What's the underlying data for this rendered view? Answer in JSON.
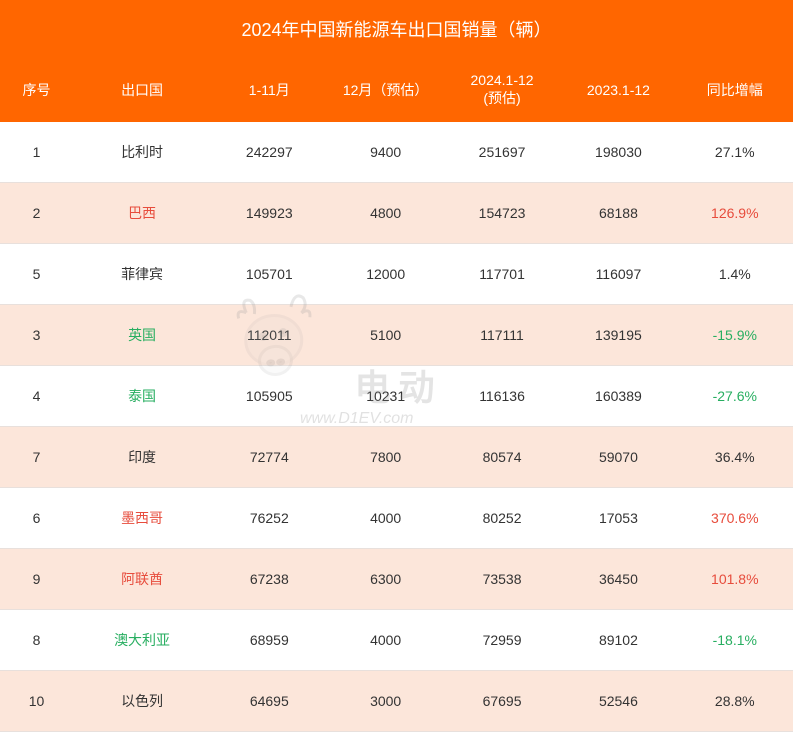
{
  "title": "2024年中国新能源车出口国销量（辆）",
  "columns": [
    {
      "key": "seq",
      "label": "序号",
      "class": "col-seq"
    },
    {
      "key": "country",
      "label": "出口国",
      "class": "col-country"
    },
    {
      "key": "jan_nov",
      "label": "1-11月",
      "class": ""
    },
    {
      "key": "dec_est",
      "label": "12月（预估）",
      "class": ""
    },
    {
      "key": "full_est",
      "label": "2024.1-12\n(预估)",
      "class": ""
    },
    {
      "key": "prev_year",
      "label": "2023.1-12",
      "class": ""
    },
    {
      "key": "yoy",
      "label": "同比增幅",
      "class": ""
    }
  ],
  "rows": [
    {
      "seq": "1",
      "country": "比利时",
      "country_color": "",
      "jan_nov": "242297",
      "dec_est": "9400",
      "full_est": "251697",
      "prev_year": "198030",
      "yoy": "27.1%",
      "yoy_color": ""
    },
    {
      "seq": "2",
      "country": "巴西",
      "country_color": "red",
      "jan_nov": "149923",
      "dec_est": "4800",
      "full_est": "154723",
      "prev_year": "68188",
      "yoy": "126.9%",
      "yoy_color": "red"
    },
    {
      "seq": "5",
      "country": "菲律宾",
      "country_color": "",
      "jan_nov": "105701",
      "dec_est": "12000",
      "full_est": "117701",
      "prev_year": "116097",
      "yoy": "1.4%",
      "yoy_color": ""
    },
    {
      "seq": "3",
      "country": "英国",
      "country_color": "green",
      "jan_nov": "112011",
      "dec_est": "5100",
      "full_est": "117111",
      "prev_year": "139195",
      "yoy": "-15.9%",
      "yoy_color": "green"
    },
    {
      "seq": "4",
      "country": "泰国",
      "country_color": "green",
      "jan_nov": "105905",
      "dec_est": "10231",
      "full_est": "116136",
      "prev_year": "160389",
      "yoy": "-27.6%",
      "yoy_color": "green"
    },
    {
      "seq": "7",
      "country": "印度",
      "country_color": "",
      "jan_nov": "72774",
      "dec_est": "7800",
      "full_est": "80574",
      "prev_year": "59070",
      "yoy": "36.4%",
      "yoy_color": ""
    },
    {
      "seq": "6",
      "country": "墨西哥",
      "country_color": "red",
      "jan_nov": "76252",
      "dec_est": "4000",
      "full_est": "80252",
      "prev_year": "17053",
      "yoy": "370.6%",
      "yoy_color": "red"
    },
    {
      "seq": "9",
      "country": "阿联酋",
      "country_color": "red",
      "jan_nov": "67238",
      "dec_est": "6300",
      "full_est": "73538",
      "prev_year": "36450",
      "yoy": "101.8%",
      "yoy_color": "red"
    },
    {
      "seq": "8",
      "country": "澳大利亚",
      "country_color": "green",
      "jan_nov": "68959",
      "dec_est": "4000",
      "full_est": "72959",
      "prev_year": "89102",
      "yoy": "-18.1%",
      "yoy_color": "green"
    },
    {
      "seq": "10",
      "country": "以色列",
      "country_color": "",
      "jan_nov": "64695",
      "dec_est": "3000",
      "full_est": "67695",
      "prev_year": "52546",
      "yoy": "28.8%",
      "yoy_color": ""
    }
  ],
  "watermark": {
    "brand_text": "电动",
    "url": "www.D1EV.com"
  },
  "styling": {
    "title_bg": "#ff6600",
    "title_color": "#ffffff",
    "header_bg": "#ff6600",
    "header_color": "#ffffff",
    "row_odd_bg": "#ffffff",
    "row_even_bg": "#fce6da",
    "text_color": "#333333",
    "red_color": "#e74c3c",
    "green_color": "#27ae60",
    "border_color": "#e8e0dc",
    "title_fontsize": 18,
    "header_fontsize": 14,
    "cell_fontsize": 14
  }
}
